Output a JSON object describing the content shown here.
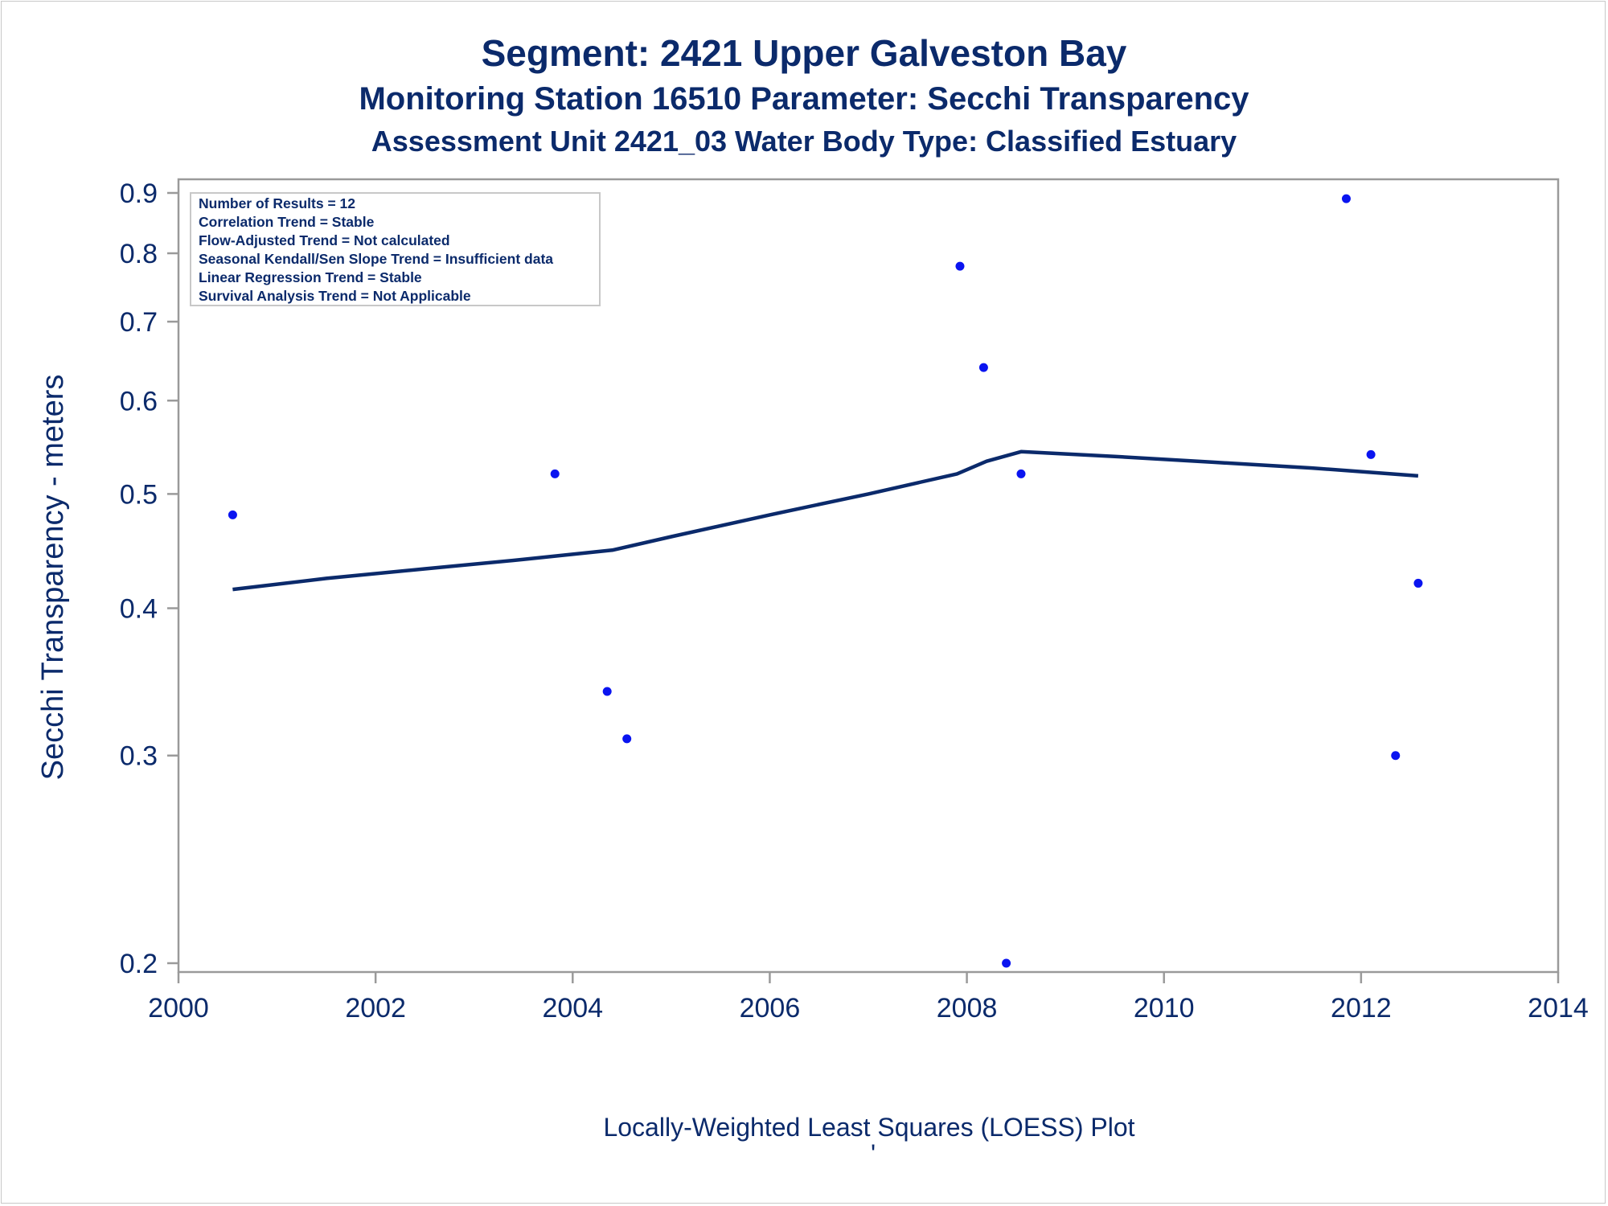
{
  "titles": {
    "line1": "Segment: 2421  Upper Galveston Bay",
    "line2": "Monitoring Station 16510 Parameter: Secchi Transparency",
    "line3": "Assessment Unit 2421_03   Water Body Type: Classified Estuary"
  },
  "footnote": "Locally-Weighted Least Squares (LOESS) Plot",
  "footnote_mark": "'",
  "stats_box": [
    "Number of Results = 12",
    "Correlation Trend = Stable",
    "Flow-Adjusted Trend = Not calculated",
    "Seasonal Kendall/Sen Slope Trend = Insufficient data",
    "Linear Regression Trend = Stable",
    "Survival Analysis Trend = Not Applicable"
  ],
  "colors": {
    "text": "#0b2a6b",
    "points": "#0a14f0",
    "loess": "#0b2a6b",
    "frame": "#9a9a9a"
  },
  "chart_data": {
    "type": "scatter",
    "title": "Segment: 2421  Upper Galveston Bay",
    "xlabel": "",
    "ylabel": "Secchi Transparency - meters",
    "x_ticks": [
      "2000",
      "2002",
      "2004",
      "2006",
      "2008",
      "2010",
      "2012",
      "2014"
    ],
    "y_ticks": [
      "0.2",
      "0.3",
      "0.4",
      "0.5",
      "0.6",
      "0.7",
      "0.8",
      "0.9"
    ],
    "xlim": [
      2000,
      2014
    ],
    "ylim": [
      0.2,
      0.9
    ],
    "y_scale": "log",
    "grid": false,
    "series": [
      {
        "type": "scatter",
        "points": [
          {
            "x": 2000.55,
            "y": 0.48
          },
          {
            "x": 2003.82,
            "y": 0.52
          },
          {
            "x": 2004.35,
            "y": 0.34
          },
          {
            "x": 2004.55,
            "y": 0.31
          },
          {
            "x": 2007.93,
            "y": 0.78
          },
          {
            "x": 2008.17,
            "y": 0.64
          },
          {
            "x": 2008.4,
            "y": 0.2
          },
          {
            "x": 2008.55,
            "y": 0.52
          },
          {
            "x": 2011.85,
            "y": 0.89
          },
          {
            "x": 2012.1,
            "y": 0.54
          },
          {
            "x": 2012.35,
            "y": 0.3
          },
          {
            "x": 2012.58,
            "y": 0.42
          }
        ]
      },
      {
        "type": "line",
        "points": [
          {
            "x": 2000.55,
            "y": 0.415
          },
          {
            "x": 2001.5,
            "y": 0.424
          },
          {
            "x": 2002.5,
            "y": 0.432
          },
          {
            "x": 2003.5,
            "y": 0.44
          },
          {
            "x": 2004.4,
            "y": 0.448
          },
          {
            "x": 2005.0,
            "y": 0.46
          },
          {
            "x": 2006.0,
            "y": 0.48
          },
          {
            "x": 2007.0,
            "y": 0.5
          },
          {
            "x": 2007.9,
            "y": 0.52
          },
          {
            "x": 2008.2,
            "y": 0.533
          },
          {
            "x": 2008.55,
            "y": 0.543
          },
          {
            "x": 2009.5,
            "y": 0.538
          },
          {
            "x": 2010.5,
            "y": 0.532
          },
          {
            "x": 2011.5,
            "y": 0.526
          },
          {
            "x": 2012.58,
            "y": 0.518
          }
        ]
      }
    ]
  }
}
